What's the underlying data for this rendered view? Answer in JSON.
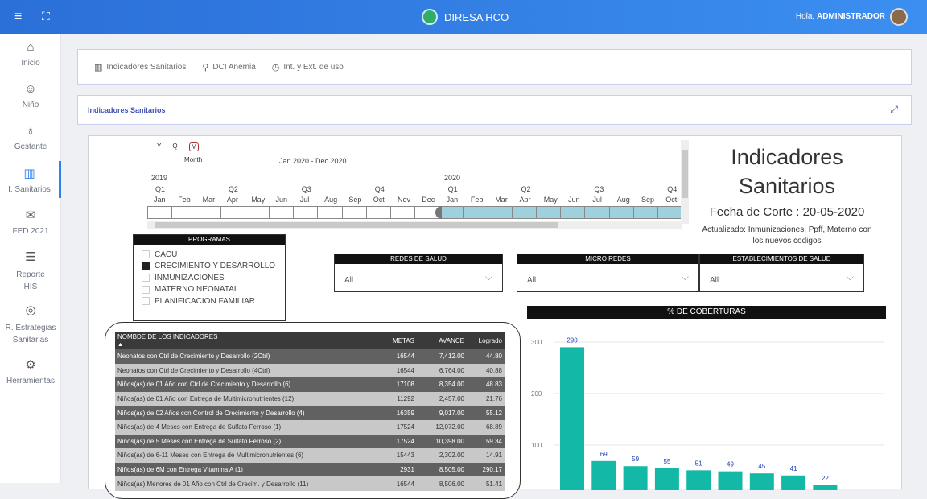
{
  "topbar": {
    "brand": "DIRESA HCO",
    "greeting": "Hola,",
    "user": "ADMINISTRADOR"
  },
  "sidebar": {
    "items": [
      {
        "label": "Inicio",
        "icon": "home-icon"
      },
      {
        "label": "Niño",
        "icon": "baby-icon"
      },
      {
        "label": "Gestante",
        "icon": "pregnant-icon"
      },
      {
        "label": "I. Sanitarios",
        "icon": "bar-chart-icon"
      },
      {
        "label": "FED 2021",
        "icon": "mail-icon"
      },
      {
        "label": "Reporte HIS",
        "icon": "document-icon"
      },
      {
        "label": "R. Estrategias Sanitarias",
        "icon": "target-icon"
      },
      {
        "label": "Herramientas",
        "icon": "gear-icon"
      }
    ]
  },
  "tabs": [
    {
      "label": "Indicadores Sanitarios",
      "icon": "bar-chart-icon"
    },
    {
      "label": "DCI Anemia",
      "icon": "pin-icon"
    },
    {
      "label": "Int. y Ext. de uso",
      "icon": "clock-icon"
    }
  ],
  "section": {
    "title": "Indicadores Sanitarios"
  },
  "report": {
    "title_line1": "Indicadores",
    "title_line2": "Sanitarios",
    "fecha_corte": "Fecha de Corte : 20-05-2020",
    "actualizado": "Actualizado: Inmunizaciones, Ppff, Materno con los nuevos codigos",
    "slicer": {
      "y": "Y",
      "q": "Q",
      "m": "M",
      "month_label": "Month",
      "range": "Jan 2020 - Dec 2020",
      "years": [
        "2019",
        "2020"
      ],
      "quarters": [
        "Q1",
        "Q2",
        "Q3",
        "Q4",
        "Q1",
        "Q2",
        "Q3",
        "Q4"
      ],
      "months": [
        "Jan",
        "Feb",
        "Mar",
        "Apr",
        "May",
        "Jun",
        "Jul",
        "Aug",
        "Sep",
        "Oct",
        "Nov",
        "Dec",
        "Jan",
        "Feb",
        "Mar",
        "Apr",
        "May",
        "Jun",
        "Jul",
        "Aug",
        "Sep",
        "Oct"
      ]
    },
    "programas": {
      "header": "PROGRAMAS",
      "options": [
        {
          "label": "CACU",
          "checked": false
        },
        {
          "label": "CRECIMIENTO Y DESARROLLO",
          "checked": true
        },
        {
          "label": "INMUNIZACIONES",
          "checked": false
        },
        {
          "label": "MATERNO NEONATAL",
          "checked": false
        },
        {
          "label": "PLANIFICACION FAMILIAR",
          "checked": false
        }
      ]
    },
    "redes": {
      "header": "REDES DE SALUD",
      "value": "All"
    },
    "microredes": {
      "header": "MICRO REDES",
      "value": "All"
    },
    "establecimientos": {
      "header": "ESTABLECIMIENTOS DE SALUD",
      "value": "All"
    },
    "table": {
      "headers": [
        "NOMBDE DE LOS INDICADORES",
        "METAS",
        "AVANCE",
        "Logrado"
      ],
      "rows": [
        [
          "Neonatos con Ctrl de Crecimiento y Desarrollo (2Ctrl)",
          "16544",
          "7,412.00",
          "44.80"
        ],
        [
          "Neonatos con Ctrl de Crecimiento y Desarrollo (4Ctrl)",
          "16544",
          "6,764.00",
          "40.88"
        ],
        [
          "Niños(as) de 01 Año con Ctrl de Crecimiento y Desarrollo (6)",
          "17108",
          "8,354.00",
          "48.83"
        ],
        [
          "Niños(as) de 01 Año con Entrega de Multimicronutrientes (12)",
          "11292",
          "2,457.00",
          "21.76"
        ],
        [
          "Niños(as) de 02 Años con Control de Crecimiento y Desarrollo (4)",
          "16359",
          "9,017.00",
          "55.12"
        ],
        [
          "Niños(as) de 4 Meses con Entrega de Sulfato Ferroso (1)",
          "17524",
          "12,072.00",
          "68.89"
        ],
        [
          "Niños(as) de 5 Meses con Entrega de Sulfato Ferroso (2)",
          "17524",
          "10,398.00",
          "59.34"
        ],
        [
          "Niños(as) de 6-11 Meses con Entrega de Multimicronutrientes (6)",
          "15443",
          "2,302.00",
          "14.91"
        ],
        [
          "Niños(as) de 6M con Entrega Vitamina A (1)",
          "2931",
          "8,505.00",
          "290.17"
        ],
        [
          "Niños(as) Menores de 01 Año con Ctrl de Crecim. y Desarrollo (11)",
          "16544",
          "8,506.00",
          "51.41"
        ]
      ]
    }
  },
  "chart_data": {
    "type": "bar",
    "title": "% DE COBERTURAS",
    "values": [
      290,
      69,
      59,
      55,
      51,
      49,
      45,
      41,
      22
    ],
    "data_labels": [
      "290",
      "69",
      "59",
      "55",
      "51",
      "49",
      "45",
      "41",
      "22"
    ],
    "yticks": [
      100,
      200,
      300
    ],
    "ylim": [
      0,
      325
    ],
    "bar_color": "#14b8a6",
    "grid": true
  }
}
